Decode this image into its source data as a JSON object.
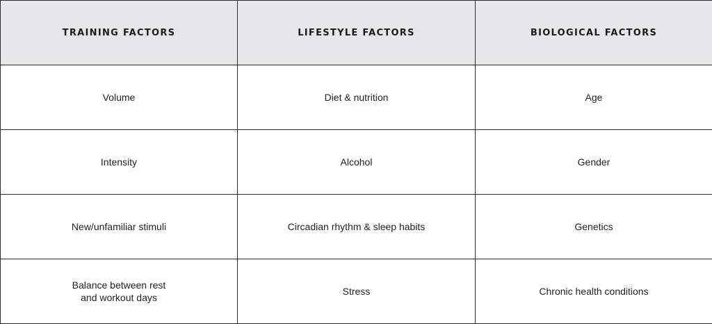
{
  "table": {
    "headers": [
      "TRAINING FACTORS",
      "LIFESTYLE FACTORS",
      "BIOLOGICAL FACTORS"
    ],
    "rows": [
      [
        "Volume",
        "Diet & nutrition",
        "Age"
      ],
      [
        "Intensity",
        "Alcohol",
        "Gender"
      ],
      [
        "New/unfamiliar stimuli",
        "Circadian rhythm & sleep habits",
        "Genetics"
      ],
      [
        "Balance between rest\nand workout days",
        "Stress",
        "Chronic health conditions"
      ]
    ]
  },
  "colors": {
    "header_background": "#e6e7e9",
    "border": "#2b2b2b",
    "text": "#1f1f1f"
  }
}
